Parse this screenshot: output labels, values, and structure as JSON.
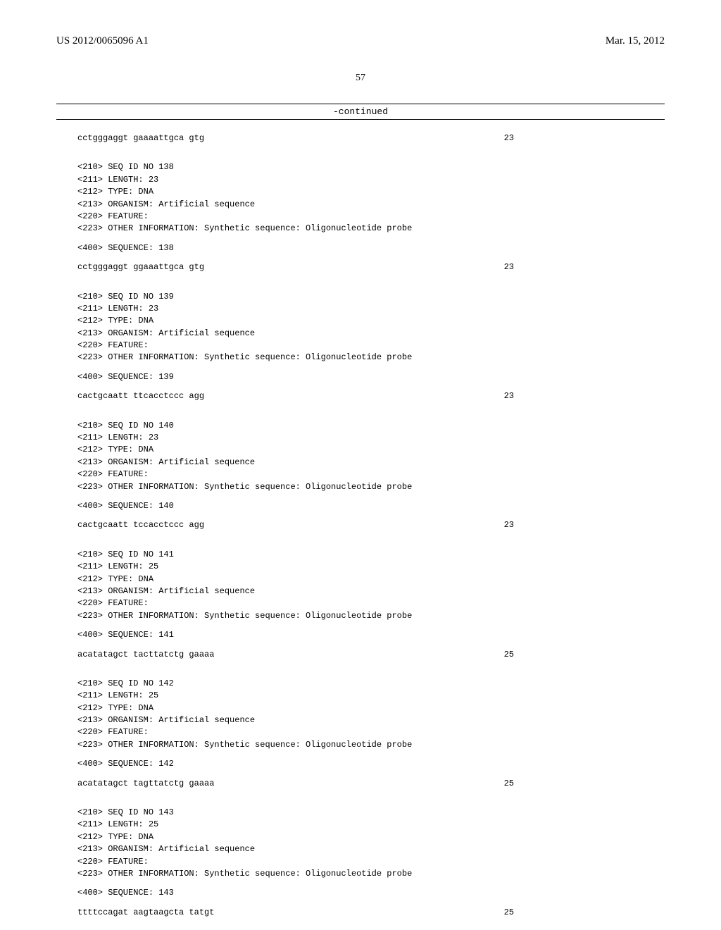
{
  "header": {
    "left": "US 2012/0065096 A1",
    "right": "Mar. 15, 2012"
  },
  "pageNumber": "57",
  "continuedLabel": "-continued",
  "firstSequence": {
    "text": "cctgggaggt gaaaattgca gtg",
    "length": "23"
  },
  "entries": [
    {
      "seqId": "138",
      "length": "23",
      "type": "DNA",
      "organism": "Artificial sequence",
      "otherInfo": "Synthetic sequence: Oligonucleotide probe",
      "sequence": "cctgggaggt ggaaattgca gtg",
      "seqLength": "23"
    },
    {
      "seqId": "139",
      "length": "23",
      "type": "DNA",
      "organism": "Artificial sequence",
      "otherInfo": "Synthetic sequence: Oligonucleotide probe",
      "sequence": "cactgcaatt ttcacctccc agg",
      "seqLength": "23"
    },
    {
      "seqId": "140",
      "length": "23",
      "type": "DNA",
      "organism": "Artificial sequence",
      "otherInfo": "Synthetic sequence: Oligonucleotide probe",
      "sequence": "cactgcaatt tccacctccc agg",
      "seqLength": "23"
    },
    {
      "seqId": "141",
      "length": "25",
      "type": "DNA",
      "organism": "Artificial sequence",
      "otherInfo": "Synthetic sequence: Oligonucleotide probe",
      "sequence": "acatatagct tacttatctg gaaaa",
      "seqLength": "25"
    },
    {
      "seqId": "142",
      "length": "25",
      "type": "DNA",
      "organism": "Artificial sequence",
      "otherInfo": "Synthetic sequence: Oligonucleotide probe",
      "sequence": "acatatagct tagttatctg gaaaa",
      "seqLength": "25"
    },
    {
      "seqId": "143",
      "length": "25",
      "type": "DNA",
      "organism": "Artificial sequence",
      "otherInfo": "Synthetic sequence: Oligonucleotide probe",
      "sequence": "ttttccagat aagtaagcta tatgt",
      "seqLength": "25"
    }
  ],
  "labels": {
    "seqIdPrefix": "<210> SEQ ID NO ",
    "lengthPrefix": "<211> LENGTH: ",
    "typePrefix": "<212> TYPE: ",
    "organismPrefix": "<213> ORGANISM: ",
    "featurePrefix": "<220> FEATURE:",
    "otherInfoPrefix": "<223> OTHER INFORMATION: ",
    "sequencePrefix": "<400> SEQUENCE: "
  }
}
